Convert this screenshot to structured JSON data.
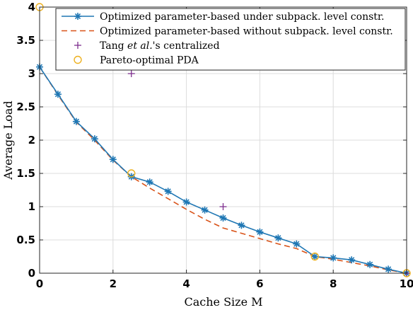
{
  "chart_data": {
    "type": "line",
    "xlabel": "Cache Size M",
    "ylabel": "Average Load",
    "xlim": [
      0,
      10
    ],
    "ylim": [
      0,
      4
    ],
    "xticks": [
      0,
      2,
      4,
      6,
      8,
      10
    ],
    "yticks": [
      0,
      0.5,
      1,
      1.5,
      2,
      2.5,
      3,
      3.5,
      4
    ],
    "xtick_labels": [
      "0",
      "2",
      "4",
      "6",
      "8",
      "10"
    ],
    "ytick_labels": [
      "0",
      "0.5",
      "1",
      "1.5",
      "2",
      "2.5",
      "3",
      "3.5",
      "4"
    ],
    "grid": true,
    "legend_position": "top-right",
    "series": [
      {
        "name": "Optimized parameter-based under subpack. level constr.",
        "style": "solid-line-star",
        "color": "#1f77b4",
        "x": [
          0,
          0.5,
          1,
          1.5,
          2,
          2.5,
          3,
          3.5,
          4,
          4.5,
          5,
          5.5,
          6,
          6.5,
          7,
          7.5,
          8,
          8.5,
          9,
          9.5,
          10
        ],
        "y": [
          3.1,
          2.69,
          2.28,
          2.02,
          1.71,
          1.45,
          1.37,
          1.23,
          1.07,
          0.95,
          0.83,
          0.72,
          0.62,
          0.53,
          0.44,
          0.25,
          0.23,
          0.2,
          0.13,
          0.06,
          0
        ]
      },
      {
        "name": "Optimized parameter-based without subpack. level constr.",
        "style": "dashed-line",
        "color": "#d95319",
        "x": [
          0,
          0.5,
          1,
          1.5,
          2,
          2.5,
          3,
          3.5,
          4,
          4.5,
          5,
          5.5,
          6,
          6.5,
          7,
          7.5,
          8,
          8.5,
          9,
          9.5,
          10
        ],
        "y": [
          3.1,
          2.68,
          2.27,
          2.0,
          1.7,
          1.45,
          1.28,
          1.12,
          0.96,
          0.81,
          0.68,
          0.6,
          0.52,
          0.44,
          0.37,
          0.25,
          0.21,
          0.16,
          0.11,
          0.05,
          0
        ]
      },
      {
        "name": "Tang et al.'s centralized",
        "name_parts": [
          "Tang ",
          "et al.",
          "'s centralized"
        ],
        "style": "plus-marker",
        "color": "#7e2f8e",
        "x": [
          2.5,
          5,
          10
        ],
        "y": [
          3.0,
          1.0,
          0
        ]
      },
      {
        "name": "Pareto-optimal PDA",
        "style": "circle-marker",
        "color": "#edb120",
        "x": [
          0,
          2.5,
          7.5,
          10
        ],
        "y": [
          4.0,
          1.5,
          0.25,
          0
        ]
      }
    ]
  }
}
